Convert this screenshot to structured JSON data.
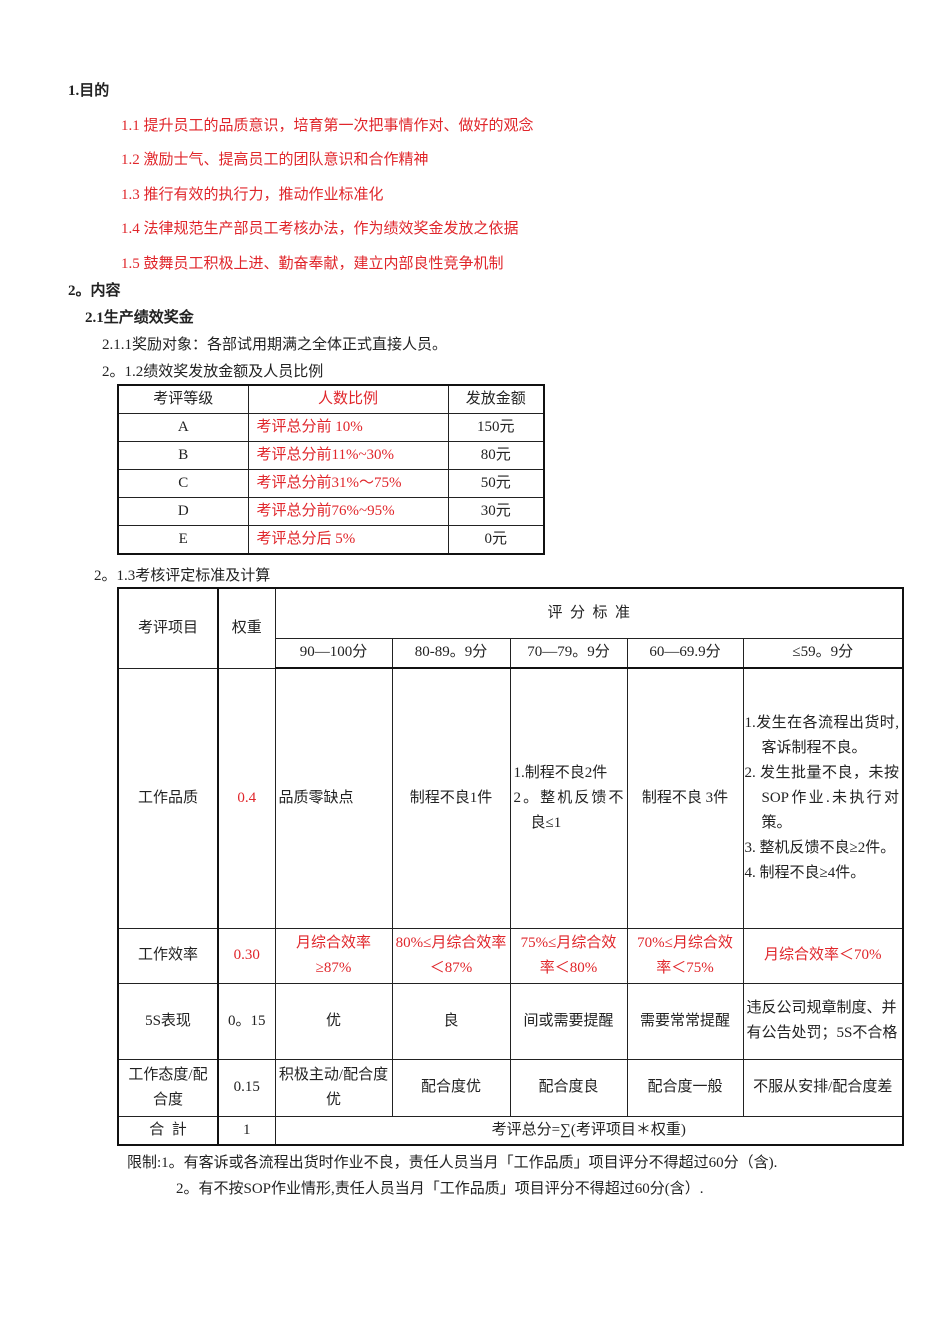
{
  "section1": {
    "title": "1.目的",
    "items": [
      "1.1  提升员工的品质意识，培育第一次把事情作对、做好的观念",
      "1.2  激励士气、提高员工的团队意识和合作精神",
      "1.3  推行有效的执行力，推动作业标准化",
      "1.4  法律规范生产部员工考核办法，作为绩效奖金发放之依据",
      "1.5  鼓舞员工积极上进、勤奋奉献，建立内部良性竞争机制"
    ]
  },
  "section2": {
    "title": "2。内容",
    "sub_title": "2.1生产绩效奖金",
    "item_211": "2.1.1奖励对象：各部试用期满之全体正式直接人员。",
    "item_212": "2。1.2绩效奖发放金额及人员比例",
    "item_213": "2。1.3考核评定标准及计算"
  },
  "table1": {
    "headers": [
      "考评等级",
      "人数比例",
      "发放金额"
    ],
    "rows": [
      [
        "A",
        "考评总分前   10%",
        "150元"
      ],
      [
        "B",
        "考评总分前11%~30%",
        "80元"
      ],
      [
        "C",
        "考评总分前31%～75%",
        "50元"
      ],
      [
        "D",
        "考评总分前76%~95%",
        "30元"
      ],
      [
        "E",
        "考评总分后   5%",
        "0元"
      ]
    ]
  },
  "table2": {
    "h_item": "考评项目",
    "h_weight": "权重",
    "h_criteria": "评  分  标  准",
    "ranges": [
      "90—100分",
      "80-89。9分",
      "70—79。9分",
      "60—69.9分",
      "≤59。9分"
    ],
    "rows": [
      {
        "item": "工作品质",
        "weight": "0.4",
        "cells": [
          "品质零缺点",
          "制程不良1件",
          "",
          "制程不良 3件",
          ""
        ],
        "c3_lines": [
          "1.制程不良2件",
          "2。整机反馈不良≤1"
        ],
        "c5_lines": [
          "1.发生在各流程出货时,客诉制程不良。",
          "2. 发生批量不良，未按SOP作业.未执行对策。",
          "3. 整机反馈不良≥2件。",
          "4. 制程不良≥4件。"
        ]
      },
      {
        "item": "工作效率",
        "weight": "0.30",
        "cells": [
          "月综合效率≥87%",
          "80%≤月综合效率＜87%",
          "75%≤月综合效率＜80%",
          "70%≤月综合效率＜75%",
          "月综合效率＜70%"
        ]
      },
      {
        "item": "5S表现",
        "weight": "0。15",
        "cells": [
          "优",
          "良",
          "间或需要提醒",
          "需要常常提醒",
          "违反公司规章制度、并有公告处罚；5S不合格"
        ]
      },
      {
        "item": "工作态度/配合度",
        "weight": "0.15",
        "cells": [
          "积极主动/配合度优",
          "配合度优",
          "配合度良",
          "配合度一般",
          "不服从安排/配合度差"
        ]
      }
    ],
    "total_label": "合  計",
    "total_weight": "1",
    "total_formula": "考评总分=∑(考评项目＊权重)"
  },
  "notes": [
    "限制:1。有客诉或各流程出货时作业不良，责任人员当月「工作品质」项目评分不得超过60分（含).",
    "2。有不按SOP作业情形,责任人员当月「工作品质」项目评分不得超过60分(含）."
  ],
  "colors": {
    "highlight": "#e0262b",
    "text": "#222222"
  }
}
